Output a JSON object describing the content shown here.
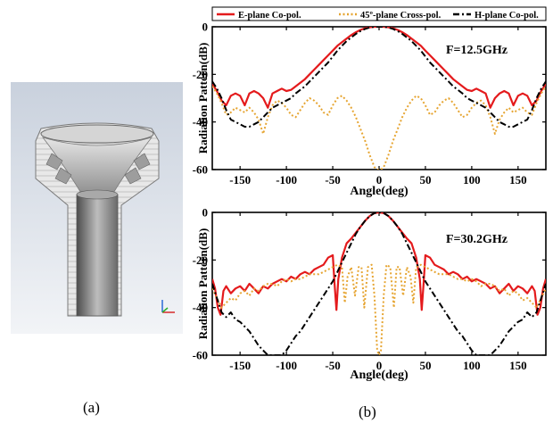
{
  "panels": {
    "a_label": "(a)",
    "b_label": "(b)"
  },
  "legend": {
    "items": [
      {
        "label": "E-plane Co-pol.",
        "color": "#e41a1c",
        "dash": "solid"
      },
      {
        "label": "45º-plane Cross-pol.",
        "color": "#e6a532",
        "dash": "dot"
      },
      {
        "label": "H-plane Co-pol.",
        "color": "#000000",
        "dash": "dashdot"
      }
    ]
  },
  "chart_data": [
    {
      "type": "line",
      "annotation": "F=12.5GHz",
      "xlabel": "Angle(deg)",
      "ylabel": "Radiation Pattern(dB)",
      "xlim": [
        -180,
        180
      ],
      "ylim": [
        -60,
        0
      ],
      "xticks": [
        -150,
        -100,
        -50,
        0,
        50,
        100,
        150
      ],
      "yticks": [
        0,
        -20,
        -40,
        -60
      ],
      "series": [
        {
          "name": "E-plane Co-pol.",
          "color": "#e41a1c",
          "dash": "solid",
          "x": [
            -180,
            -175,
            -170,
            -165,
            -160,
            -155,
            -150,
            -145,
            -140,
            -135,
            -130,
            -125,
            -120,
            -115,
            -110,
            -105,
            -100,
            -95,
            -90,
            -85,
            -80,
            -75,
            -70,
            -65,
            -60,
            -55,
            -50,
            -45,
            -40,
            -35,
            -30,
            -25,
            -20,
            -15,
            -10,
            -5,
            0,
            5,
            10,
            15,
            20,
            25,
            30,
            35,
            40,
            45,
            50,
            55,
            60,
            65,
            70,
            75,
            80,
            85,
            90,
            95,
            100,
            105,
            110,
            115,
            120,
            125,
            130,
            135,
            140,
            145,
            150,
            155,
            160,
            165,
            170,
            175,
            180
          ],
          "y": [
            -24,
            -27,
            -31,
            -33,
            -29,
            -28,
            -29,
            -33,
            -28,
            -27,
            -28,
            -30,
            -34,
            -28,
            -27,
            -26,
            -27,
            -26.5,
            -25,
            -23.5,
            -22,
            -20,
            -18,
            -16,
            -14,
            -12,
            -10,
            -8,
            -6.5,
            -5,
            -3.5,
            -2.3,
            -1.3,
            -0.6,
            -0.2,
            0,
            0,
            0,
            -0.2,
            -0.6,
            -1.3,
            -2.3,
            -3.5,
            -5,
            -6.5,
            -8,
            -10,
            -12,
            -14,
            -16,
            -18,
            -20,
            -22,
            -23.5,
            -25,
            -26.5,
            -27,
            -26,
            -27,
            -28,
            -34,
            -30,
            -28,
            -27,
            -28,
            -33,
            -29,
            -28,
            -29,
            -33,
            -31,
            -27,
            -24
          ]
        },
        {
          "name": "45º-plane Cross-pol.",
          "color": "#e6a532",
          "dash": "dot",
          "x": [
            -180,
            -175,
            -170,
            -165,
            -160,
            -155,
            -150,
            -145,
            -140,
            -135,
            -130,
            -125,
            -120,
            -115,
            -110,
            -105,
            -100,
            -95,
            -90,
            -85,
            -80,
            -75,
            -70,
            -65,
            -60,
            -55,
            -50,
            -45,
            -40,
            -35,
            -30,
            -25,
            -20,
            -15,
            -10,
            -5,
            -2,
            0,
            2,
            5,
            10,
            15,
            20,
            25,
            30,
            35,
            40,
            45,
            50,
            55,
            60,
            65,
            70,
            75,
            80,
            85,
            90,
            95,
            100,
            105,
            110,
            115,
            120,
            125,
            130,
            135,
            140,
            145,
            150,
            155,
            160,
            165,
            170,
            175,
            180
          ],
          "y": [
            -25,
            -28,
            -32,
            -37,
            -36,
            -34,
            -35,
            -36,
            -34,
            -36,
            -39,
            -45,
            -38,
            -33,
            -31,
            -32,
            -34,
            -37,
            -38,
            -35,
            -32,
            -30,
            -31,
            -33,
            -36,
            -37,
            -33,
            -30,
            -29,
            -31,
            -34,
            -38,
            -43,
            -48,
            -54,
            -59,
            -60,
            -60,
            -60,
            -59,
            -54,
            -48,
            -43,
            -38,
            -34,
            -31,
            -29,
            -30,
            -33,
            -37,
            -36,
            -33,
            -31,
            -30,
            -32,
            -35,
            -38,
            -37,
            -34,
            -32,
            -31,
            -33,
            -38,
            -45,
            -39,
            -36,
            -34,
            -36,
            -35,
            -34,
            -36,
            -37,
            -32,
            -28,
            -25
          ]
        },
        {
          "name": "H-plane Co-pol.",
          "color": "#000000",
          "dash": "dashdot",
          "x": [
            -180,
            -175,
            -170,
            -165,
            -160,
            -155,
            -150,
            -145,
            -140,
            -135,
            -130,
            -125,
            -120,
            -115,
            -110,
            -105,
            -100,
            -95,
            -90,
            -85,
            -80,
            -75,
            -70,
            -65,
            -60,
            -55,
            -50,
            -45,
            -40,
            -35,
            -30,
            -25,
            -20,
            -15,
            -10,
            -5,
            0,
            5,
            10,
            15,
            20,
            25,
            30,
            35,
            40,
            45,
            50,
            55,
            60,
            65,
            70,
            75,
            80,
            85,
            90,
            95,
            100,
            105,
            110,
            115,
            120,
            125,
            130,
            135,
            140,
            145,
            150,
            155,
            160,
            165,
            170,
            175,
            180
          ],
          "y": [
            -23,
            -26,
            -30,
            -35,
            -39,
            -40,
            -41,
            -42,
            -42,
            -41,
            -40,
            -38,
            -36,
            -34,
            -33,
            -32,
            -31,
            -30,
            -28,
            -26.5,
            -25,
            -23,
            -21,
            -19,
            -17,
            -15,
            -12.5,
            -10,
            -8,
            -6,
            -4.5,
            -3,
            -1.8,
            -0.9,
            -0.3,
            0,
            0,
            0,
            -0.3,
            -0.9,
            -1.8,
            -3,
            -4.5,
            -6,
            -8,
            -10,
            -12.5,
            -15,
            -17,
            -19,
            -21,
            -23,
            -25,
            -26.5,
            -28,
            -30,
            -31,
            -32,
            -33,
            -34,
            -36,
            -38,
            -40,
            -41,
            -42,
            -42,
            -41,
            -40,
            -39,
            -35,
            -30,
            -26,
            -23
          ]
        }
      ]
    },
    {
      "type": "line",
      "annotation": "F=30.2GHz",
      "xlabel": "Angle(deg)",
      "ylabel": "Radiation Pattern(dB)",
      "xlim": [
        -180,
        180
      ],
      "ylim": [
        -60,
        0
      ],
      "xticks": [
        -150,
        -100,
        -50,
        0,
        50,
        100,
        150
      ],
      "yticks": [
        0,
        -20,
        -40,
        -60
      ],
      "series": [
        {
          "name": "E-plane Co-pol.",
          "color": "#e41a1c",
          "dash": "solid",
          "x": [
            -180,
            -177,
            -174,
            -171,
            -168,
            -165,
            -160,
            -155,
            -150,
            -145,
            -140,
            -135,
            -130,
            -125,
            -120,
            -115,
            -110,
            -105,
            -100,
            -95,
            -90,
            -85,
            -80,
            -75,
            -70,
            -65,
            -60,
            -55,
            -50,
            -48,
            -46,
            -44,
            -40,
            -35,
            -30,
            -25,
            -20,
            -15,
            -10,
            -5,
            0,
            5,
            10,
            15,
            20,
            25,
            30,
            35,
            40,
            44,
            46,
            48,
            50,
            55,
            60,
            65,
            70,
            75,
            80,
            85,
            90,
            95,
            100,
            105,
            110,
            115,
            120,
            125,
            130,
            135,
            140,
            145,
            150,
            155,
            160,
            165,
            168,
            171,
            174,
            177,
            180
          ],
          "y": [
            -28,
            -32,
            -40,
            -43,
            -33,
            -31,
            -34,
            -32,
            -31,
            -33,
            -30,
            -32,
            -34,
            -31,
            -32,
            -30,
            -29,
            -28,
            -29,
            -27,
            -28,
            -26,
            -25,
            -26,
            -24,
            -23,
            -22,
            -19,
            -18,
            -30,
            -41,
            -28,
            -19,
            -13,
            -11,
            -8.5,
            -6,
            -3.5,
            -1.5,
            -0.3,
            0,
            -0.3,
            -1.5,
            -3.5,
            -6,
            -8.5,
            -11,
            -13,
            -19,
            -28,
            -41,
            -30,
            -18,
            -19,
            -22,
            -23,
            -24,
            -26,
            -25,
            -26,
            -28,
            -27,
            -29,
            -28,
            -29,
            -30,
            -32,
            -31,
            -34,
            -32,
            -30,
            -33,
            -31,
            -32,
            -34,
            -31,
            -33,
            -43,
            -40,
            -32,
            -28
          ]
        },
        {
          "name": "45º-plane Cross-pol.",
          "color": "#e6a532",
          "dash": "dot",
          "x": [
            -180,
            -175,
            -170,
            -165,
            -160,
            -155,
            -150,
            -145,
            -140,
            -135,
            -130,
            -125,
            -120,
            -115,
            -110,
            -105,
            -100,
            -95,
            -90,
            -85,
            -80,
            -75,
            -70,
            -65,
            -60,
            -55,
            -50,
            -45,
            -40,
            -37,
            -34,
            -30,
            -26,
            -22,
            -19,
            -16,
            -12,
            -8,
            -5,
            -2,
            0,
            2,
            5,
            8,
            12,
            16,
            19,
            22,
            26,
            30,
            34,
            37,
            40,
            45,
            50,
            55,
            60,
            65,
            70,
            75,
            80,
            85,
            90,
            95,
            100,
            105,
            110,
            115,
            120,
            125,
            130,
            135,
            140,
            145,
            150,
            155,
            160,
            165,
            170,
            175,
            180
          ],
          "y": [
            -32,
            -36,
            -40,
            -38,
            -36,
            -37,
            -34,
            -33,
            -35,
            -32,
            -33,
            -31,
            -30,
            -30,
            -31,
            -29,
            -28,
            -29,
            -28,
            -28,
            -27,
            -26,
            -26,
            -26,
            -25,
            -24,
            -23,
            -22,
            -23,
            -38,
            -27,
            -23,
            -35,
            -23,
            -23,
            -40,
            -23,
            -22,
            -35,
            -58,
            -60,
            -58,
            -35,
            -22,
            -23,
            -40,
            -23,
            -23,
            -35,
            -23,
            -27,
            -38,
            -23,
            -22,
            -23,
            -24,
            -25,
            -26,
            -26,
            -26,
            -27,
            -28,
            -28,
            -29,
            -28,
            -29,
            -31,
            -30,
            -30,
            -31,
            -33,
            -32,
            -35,
            -33,
            -34,
            -37,
            -36,
            -38,
            -40,
            -36,
            -32
          ]
        },
        {
          "name": "H-plane Co-pol.",
          "color": "#000000",
          "dash": "dashdot",
          "x": [
            -180,
            -175,
            -170,
            -165,
            -160,
            -155,
            -150,
            -145,
            -140,
            -135,
            -130,
            -125,
            -120,
            -115,
            -110,
            -105,
            -100,
            -95,
            -90,
            -85,
            -80,
            -75,
            -70,
            -65,
            -60,
            -55,
            -50,
            -45,
            -40,
            -35,
            -30,
            -25,
            -20,
            -15,
            -10,
            -5,
            0,
            5,
            10,
            15,
            20,
            25,
            30,
            35,
            40,
            45,
            50,
            55,
            60,
            65,
            70,
            75,
            80,
            85,
            90,
            95,
            100,
            105,
            110,
            115,
            120,
            125,
            130,
            135,
            140,
            145,
            150,
            155,
            160,
            165,
            170,
            175,
            180
          ],
          "y": [
            -30,
            -36,
            -42,
            -44,
            -42,
            -45,
            -46,
            -48,
            -50,
            -53,
            -56,
            -58,
            -60,
            -60,
            -60,
            -60,
            -58,
            -55,
            -52,
            -50,
            -47,
            -44,
            -41,
            -38,
            -35,
            -32,
            -29,
            -25,
            -21,
            -17,
            -13,
            -9,
            -6,
            -3.5,
            -1.5,
            -0.3,
            0,
            -0.3,
            -1.5,
            -3.5,
            -6,
            -9,
            -13,
            -17,
            -21,
            -25,
            -29,
            -32,
            -35,
            -38,
            -41,
            -44,
            -47,
            -50,
            -52,
            -55,
            -58,
            -60,
            -60,
            -60,
            -60,
            -58,
            -56,
            -53,
            -50,
            -48,
            -46,
            -45,
            -42,
            -44,
            -42,
            -36,
            -30
          ]
        }
      ]
    }
  ]
}
